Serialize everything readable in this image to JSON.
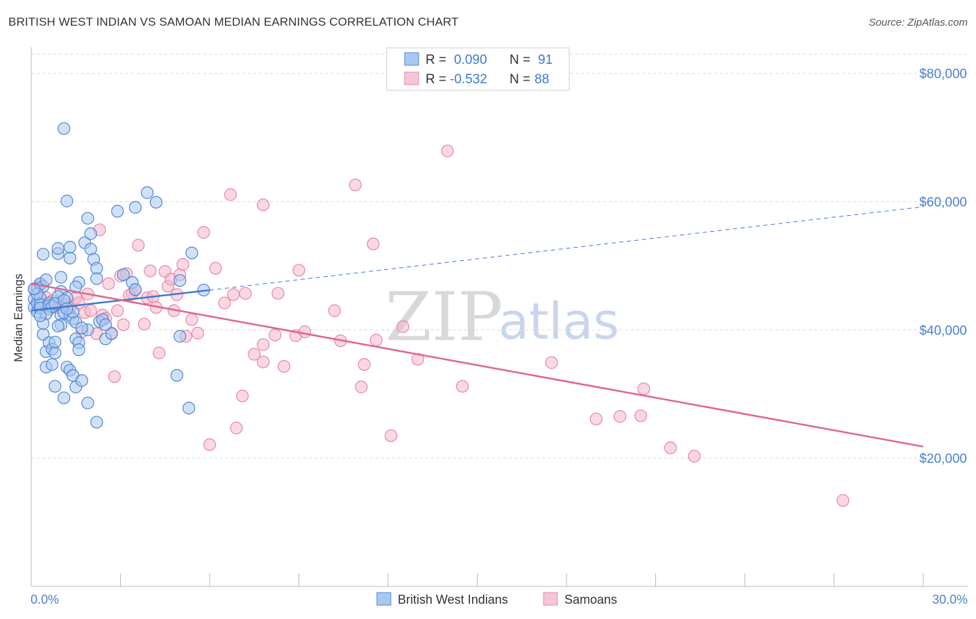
{
  "title": "BRITISH WEST INDIAN VS SAMOAN MEDIAN EARNINGS CORRELATION CHART",
  "source": "Source: ZipAtlas.com",
  "watermark": {
    "zip": "ZIP",
    "atlas": "atlas"
  },
  "colors": {
    "blue_fill": "#a9c8f0",
    "blue_stroke": "#4f86d4",
    "blue_line": "#3f78d0",
    "pink_fill": "#f5b8cc",
    "pink_stroke": "#e885a6",
    "pink_line": "#e06592",
    "grid": "#d9d9d9",
    "axis_text": "#4a7fd0"
  },
  "legend_top": {
    "rows": [
      {
        "r_label": "R =",
        "r_value": "0.090",
        "n_label": "N =",
        "n_value": "91",
        "color": "blue"
      },
      {
        "r_label": "R =",
        "r_value": "-0.532",
        "n_label": "N =",
        "n_value": "88",
        "color": "pink"
      }
    ]
  },
  "chart_data": {
    "type": "scatter",
    "title": "BRITISH WEST INDIAN VS SAMOAN MEDIAN EARNINGS CORRELATION CHART",
    "xlabel": "",
    "ylabel": "Median Earnings",
    "xlim": [
      0,
      30
    ],
    "ylim": [
      0,
      83000
    ],
    "x_tick_labels": [
      "0.0%",
      "30.0%"
    ],
    "y_ticks": [
      20000,
      40000,
      60000,
      80000
    ],
    "y_tick_labels": [
      "$20,000",
      "$40,000",
      "$60,000",
      "$80,000"
    ],
    "grid": true,
    "legend_position": "top-center and bottom",
    "series": [
      {
        "name": "British West Indians",
        "color": "blue",
        "trend": {
          "x0": 0,
          "y0": 43000,
          "x1": 6,
          "y1": 46200,
          "dashed_to_x": 30,
          "dashed_to_y": 59200
        },
        "points": [
          [
            0.1,
            44800
          ],
          [
            0.1,
            43500
          ],
          [
            0.2,
            46500
          ],
          [
            0.2,
            42800
          ],
          [
            0.2,
            44200
          ],
          [
            0.3,
            45000
          ],
          [
            0.3,
            44000
          ],
          [
            0.3,
            47200
          ],
          [
            0.4,
            46800
          ],
          [
            0.4,
            51800
          ],
          [
            0.4,
            39300
          ],
          [
            0.5,
            47800
          ],
          [
            0.5,
            36600
          ],
          [
            0.5,
            34200
          ],
          [
            0.6,
            38000
          ],
          [
            0.6,
            44200
          ],
          [
            0.6,
            43200
          ],
          [
            0.7,
            37000
          ],
          [
            0.7,
            34600
          ],
          [
            0.8,
            36400
          ],
          [
            0.8,
            31200
          ],
          [
            0.8,
            38100
          ],
          [
            0.9,
            51900
          ],
          [
            0.9,
            52700
          ],
          [
            1.0,
            46000
          ],
          [
            1.0,
            42300
          ],
          [
            1.0,
            40800
          ],
          [
            1.0,
            48200
          ],
          [
            1.1,
            71400
          ],
          [
            1.1,
            29400
          ],
          [
            1.1,
            42700
          ],
          [
            1.2,
            60100
          ],
          [
            1.2,
            45000
          ],
          [
            1.2,
            34200
          ],
          [
            1.3,
            51200
          ],
          [
            1.3,
            52900
          ],
          [
            1.3,
            33700
          ],
          [
            1.3,
            42300
          ],
          [
            1.4,
            32900
          ],
          [
            1.4,
            41700
          ],
          [
            1.5,
            41200
          ],
          [
            1.5,
            31100
          ],
          [
            1.5,
            38600
          ],
          [
            1.6,
            47400
          ],
          [
            1.6,
            38000
          ],
          [
            1.6,
            36900
          ],
          [
            1.7,
            32100
          ],
          [
            1.8,
            53600
          ],
          [
            1.9,
            57400
          ],
          [
            1.9,
            40000
          ],
          [
            1.9,
            28600
          ],
          [
            2.0,
            55000
          ],
          [
            2.0,
            52600
          ],
          [
            2.1,
            51000
          ],
          [
            2.2,
            49600
          ],
          [
            2.2,
            48000
          ],
          [
            2.2,
            25600
          ],
          [
            2.3,
            41300
          ],
          [
            2.4,
            41600
          ],
          [
            2.5,
            38600
          ],
          [
            2.7,
            39400
          ],
          [
            2.9,
            58500
          ],
          [
            3.1,
            48600
          ],
          [
            3.4,
            47400
          ],
          [
            3.5,
            46300
          ],
          [
            3.5,
            59100
          ],
          [
            3.9,
            61400
          ],
          [
            4.2,
            59900
          ],
          [
            4.9,
            32900
          ],
          [
            5.0,
            47700
          ],
          [
            5.0,
            39000
          ],
          [
            5.3,
            27800
          ],
          [
            5.4,
            52000
          ],
          [
            5.8,
            46200
          ],
          [
            0.3,
            43400
          ],
          [
            0.6,
            43800
          ],
          [
            0.7,
            43600
          ],
          [
            0.9,
            45200
          ],
          [
            1.4,
            42800
          ],
          [
            0.2,
            45600
          ],
          [
            0.5,
            42500
          ],
          [
            0.8,
            44100
          ],
          [
            1.1,
            44600
          ],
          [
            0.4,
            41000
          ],
          [
            1.7,
            40300
          ],
          [
            2.5,
            40800
          ],
          [
            0.1,
            46400
          ],
          [
            1.2,
            43300
          ],
          [
            0.9,
            40600
          ],
          [
            0.3,
            42200
          ],
          [
            1.5,
            46700
          ]
        ]
      },
      {
        "name": "Samoans",
        "color": "pink",
        "trend": {
          "x0": 0,
          "y0": 47200,
          "x1": 30,
          "y1": 21800
        },
        "points": [
          [
            0.1,
            46300
          ],
          [
            0.2,
            44000
          ],
          [
            0.3,
            47000
          ],
          [
            0.5,
            45000
          ],
          [
            0.6,
            43500
          ],
          [
            0.7,
            44500
          ],
          [
            0.8,
            43700
          ],
          [
            0.9,
            43500
          ],
          [
            1.0,
            44300
          ],
          [
            1.1,
            44000
          ],
          [
            1.2,
            43800
          ],
          [
            1.3,
            43400
          ],
          [
            1.5,
            45000
          ],
          [
            1.6,
            44200
          ],
          [
            1.7,
            39700
          ],
          [
            1.8,
            42700
          ],
          [
            1.9,
            45600
          ],
          [
            2.0,
            43000
          ],
          [
            2.2,
            39400
          ],
          [
            2.3,
            55600
          ],
          [
            2.4,
            42300
          ],
          [
            2.5,
            41800
          ],
          [
            2.6,
            47200
          ],
          [
            2.7,
            39500
          ],
          [
            2.8,
            32700
          ],
          [
            2.9,
            43000
          ],
          [
            3.0,
            48400
          ],
          [
            3.1,
            40800
          ],
          [
            3.2,
            48800
          ],
          [
            3.4,
            45700
          ],
          [
            3.5,
            46200
          ],
          [
            3.6,
            53200
          ],
          [
            3.8,
            40900
          ],
          [
            3.9,
            45000
          ],
          [
            4.0,
            49200
          ],
          [
            4.1,
            45200
          ],
          [
            4.2,
            43500
          ],
          [
            4.3,
            36400
          ],
          [
            4.5,
            49100
          ],
          [
            4.6,
            46800
          ],
          [
            4.7,
            47900
          ],
          [
            4.8,
            43000
          ],
          [
            4.9,
            45500
          ],
          [
            5.0,
            48600
          ],
          [
            5.1,
            50200
          ],
          [
            5.2,
            39000
          ],
          [
            5.4,
            41600
          ],
          [
            5.6,
            39500
          ],
          [
            5.8,
            55200
          ],
          [
            6.0,
            22100
          ],
          [
            6.2,
            49600
          ],
          [
            6.5,
            44200
          ],
          [
            6.7,
            61100
          ],
          [
            6.8,
            45500
          ],
          [
            6.9,
            24700
          ],
          [
            7.1,
            29700
          ],
          [
            7.2,
            45700
          ],
          [
            7.5,
            36200
          ],
          [
            7.8,
            37700
          ],
          [
            7.8,
            59500
          ],
          [
            7.8,
            35000
          ],
          [
            8.2,
            39200
          ],
          [
            8.3,
            45700
          ],
          [
            8.5,
            34300
          ],
          [
            8.9,
            39100
          ],
          [
            9.0,
            49300
          ],
          [
            9.2,
            39700
          ],
          [
            10.2,
            43000
          ],
          [
            10.4,
            38300
          ],
          [
            10.9,
            62600
          ],
          [
            11.1,
            31100
          ],
          [
            11.2,
            34600
          ],
          [
            11.5,
            53400
          ],
          [
            11.6,
            38400
          ],
          [
            12.1,
            23500
          ],
          [
            12.5,
            40500
          ],
          [
            13.0,
            35400
          ],
          [
            14.0,
            67900
          ],
          [
            14.5,
            31200
          ],
          [
            17.5,
            34900
          ],
          [
            19.0,
            26100
          ],
          [
            19.8,
            26500
          ],
          [
            20.5,
            26600
          ],
          [
            20.6,
            30800
          ],
          [
            21.5,
            21600
          ],
          [
            22.3,
            20300
          ],
          [
            27.3,
            13400
          ],
          [
            3.3,
            45400
          ]
        ]
      }
    ]
  },
  "bottom_legend": [
    {
      "label": "British West Indians",
      "color": "blue"
    },
    {
      "label": "Samoans",
      "color": "pink"
    }
  ]
}
